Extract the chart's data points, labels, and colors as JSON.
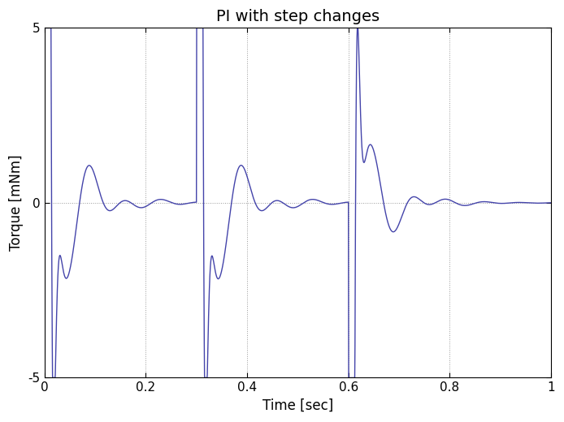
{
  "title": "PI with step changes",
  "xlabel": "Time [sec]",
  "ylabel": "Torque [mNm]",
  "xlim": [
    0,
    1
  ],
  "ylim": [
    -5,
    5
  ],
  "line_color": "#4444aa",
  "line_width": 1.0,
  "bg_color": "#ffffff",
  "xticks": [
    0,
    0.2,
    0.4,
    0.6,
    0.8,
    1.0
  ],
  "yticks": [
    -5,
    0,
    5
  ],
  "grid_vlines": [
    0.2,
    0.4,
    0.6,
    0.8
  ],
  "title_fontsize": 14,
  "axis_fontsize": 12,
  "tick_fontsize": 11
}
